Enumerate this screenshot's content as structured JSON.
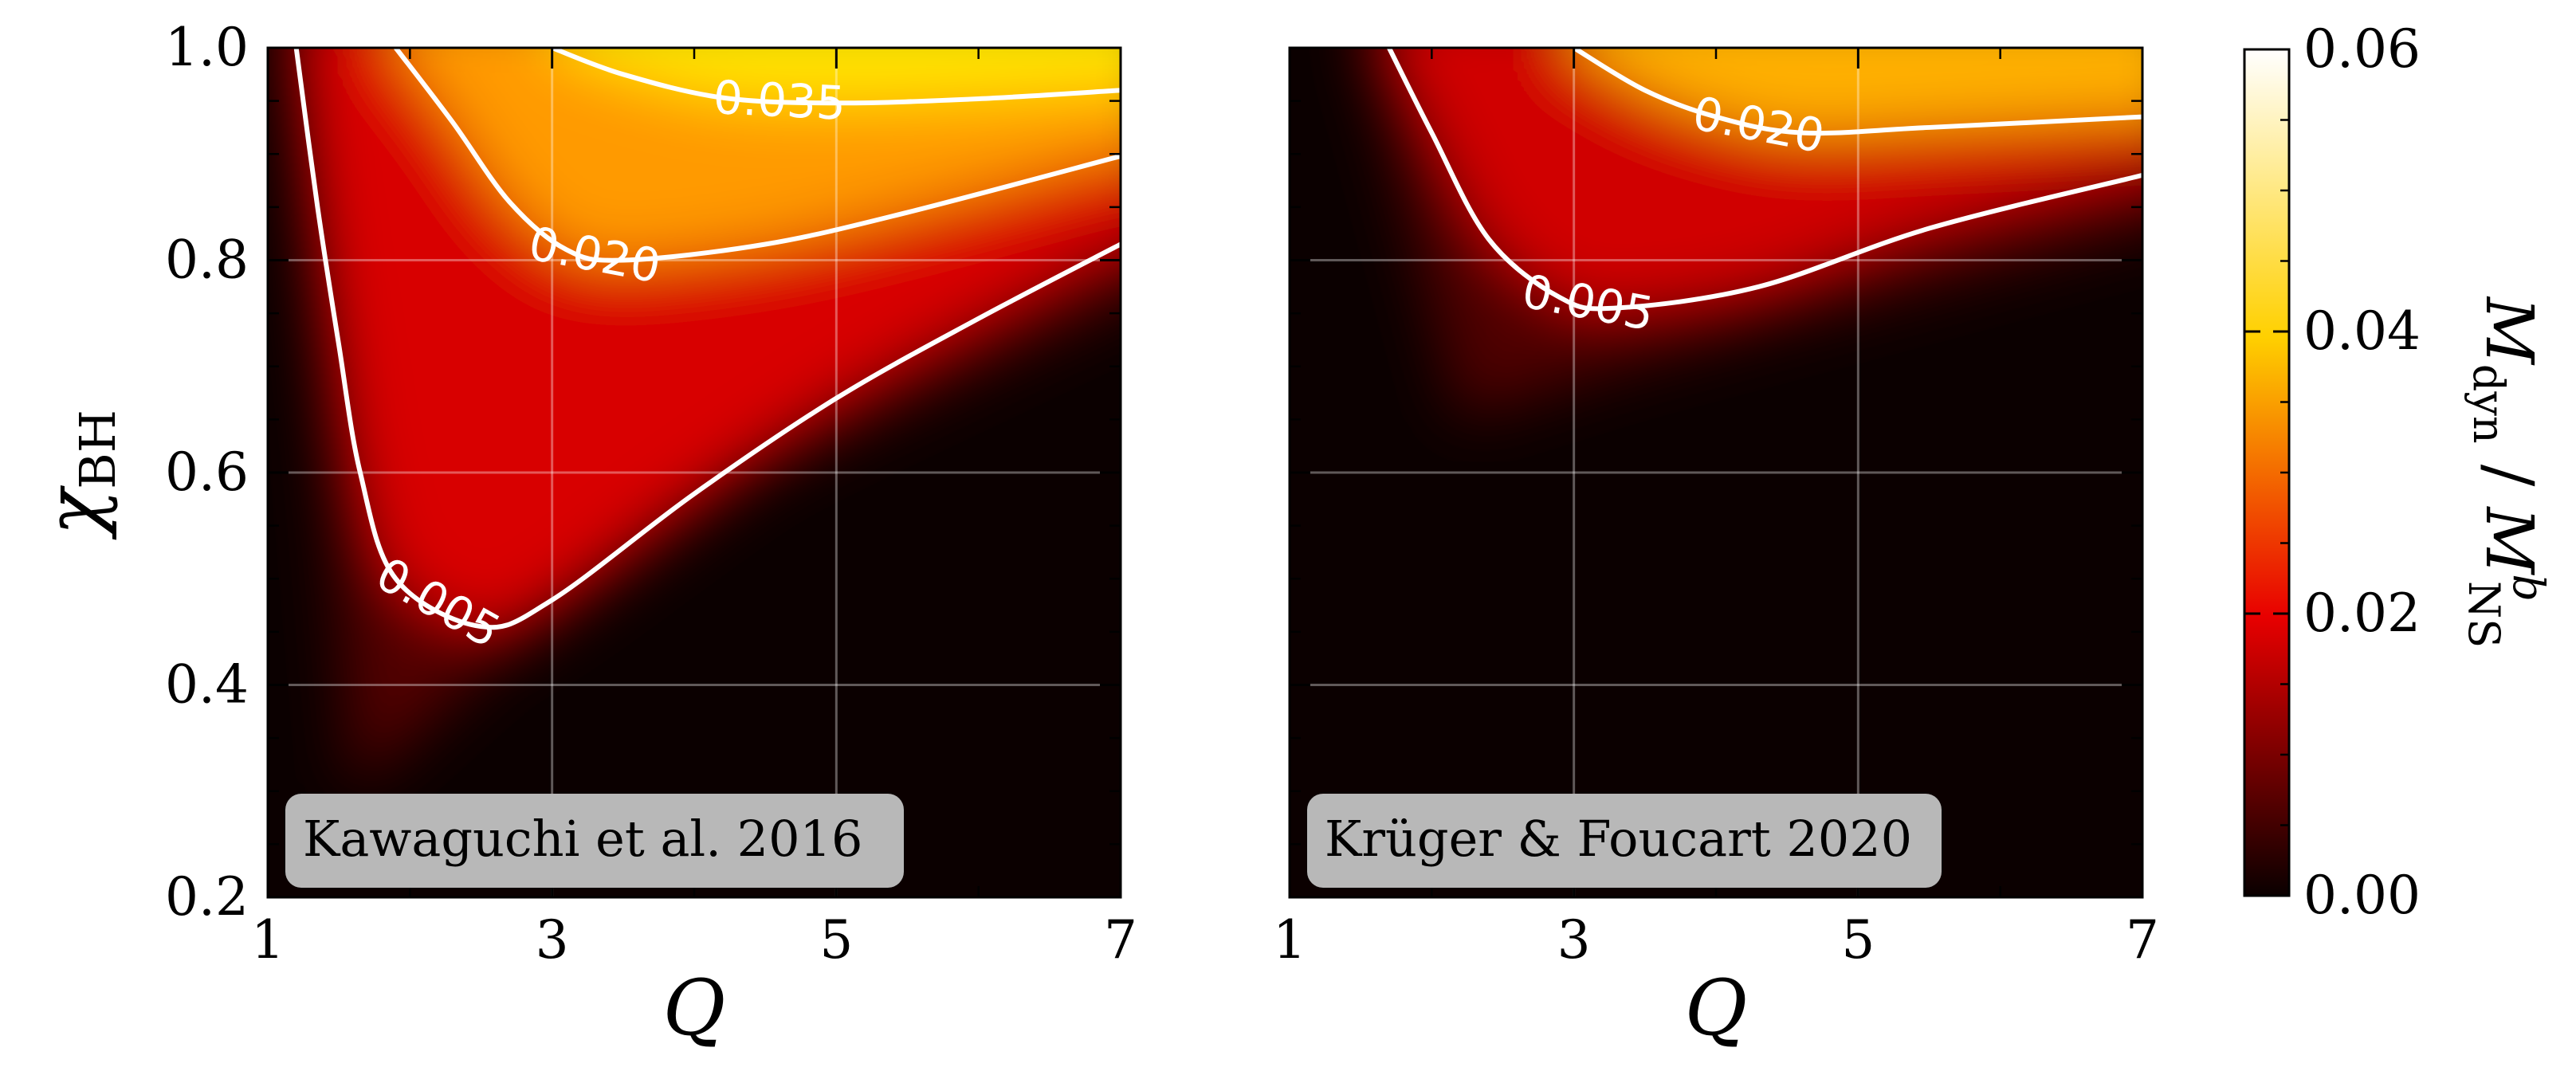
{
  "chart_data": {
    "type": "heatmap",
    "colormap": "hot",
    "x_ticks": [
      "1",
      "3",
      "5",
      "7"
    ],
    "y_ticks": [
      "0.2",
      "0.4",
      "0.6",
      "0.8",
      "1.0"
    ],
    "xlim": [
      1,
      7
    ],
    "ylim": [
      0.2,
      1.0
    ],
    "xlabel": "Q",
    "ylabel": "χ",
    "ylabel_sub": "BH",
    "colorbar": {
      "range": [
        0.0,
        0.06
      ],
      "ticks": [
        "0.00",
        "0.02",
        "0.04",
        "0.06"
      ],
      "label_main": "M",
      "label_main_sub": "dyn",
      "label_sep": " / ",
      "label_denom": "M",
      "label_denom_sup": "b",
      "label_denom_sub": "NS"
    },
    "grid": true,
    "panels": [
      {
        "label": "Kawaguchi et al. 2016",
        "contours": [
          {
            "level": 0.005,
            "label": "0.005",
            "points": [
              [
                1.2,
                1.0
              ],
              [
                1.35,
                0.85
              ],
              [
                1.5,
                0.72
              ],
              [
                1.65,
                0.6
              ],
              [
                1.9,
                0.5
              ],
              [
                2.5,
                0.455
              ],
              [
                3.0,
                0.48
              ],
              [
                4.0,
                0.58
              ],
              [
                5.0,
                0.67
              ],
              [
                6.0,
                0.745
              ],
              [
                7.0,
                0.815
              ]
            ]
          },
          {
            "level": 0.02,
            "label": "0.020",
            "points": [
              [
                1.9,
                1.0
              ],
              [
                2.3,
                0.93
              ],
              [
                2.7,
                0.855
              ],
              [
                3.1,
                0.81
              ],
              [
                3.5,
                0.8
              ],
              [
                4.5,
                0.815
              ],
              [
                5.5,
                0.845
              ],
              [
                7.0,
                0.898
              ]
            ]
          },
          {
            "level": 0.035,
            "label": "0.035",
            "points": [
              [
                3.0,
                1.0
              ],
              [
                3.5,
                0.975
              ],
              [
                4.2,
                0.953
              ],
              [
                5.0,
                0.948
              ],
              [
                6.0,
                0.952
              ],
              [
                7.0,
                0.96
              ]
            ]
          }
        ]
      },
      {
        "label": "Krüger & Foucart 2020",
        "contours": [
          {
            "level": 0.005,
            "label": "0.005",
            "points": [
              [
                1.7,
                1.0
              ],
              [
                2.0,
                0.92
              ],
              [
                2.4,
                0.82
              ],
              [
                2.9,
                0.765
              ],
              [
                3.3,
                0.755
              ],
              [
                4.3,
                0.775
              ],
              [
                5.5,
                0.83
              ],
              [
                7.0,
                0.88
              ]
            ]
          },
          {
            "level": 0.02,
            "label": "0.020",
            "points": [
              [
                3.0,
                1.0
              ],
              [
                3.5,
                0.96
              ],
              [
                4.0,
                0.935
              ],
              [
                4.6,
                0.92
              ],
              [
                5.5,
                0.925
              ],
              [
                7.0,
                0.935
              ]
            ]
          }
        ]
      }
    ]
  }
}
